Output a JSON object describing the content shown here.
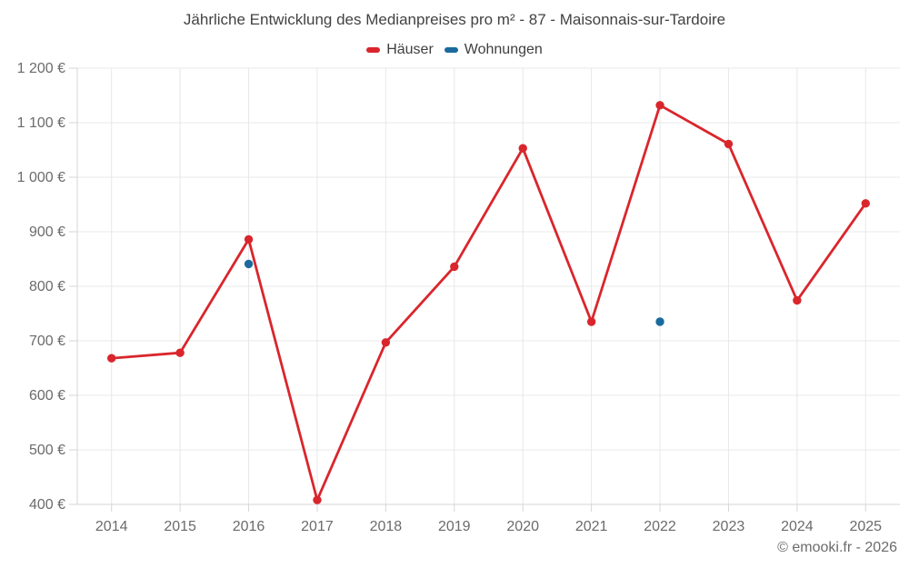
{
  "footer": "© emooki.fr - 2026",
  "colors": {
    "haeuser": "#d9262c",
    "wohnungen": "#1a6a9d",
    "grid": "#e8e8e8",
    "axis": "#d6d6d6",
    "tick_text": "#6b6b6b",
    "title_text": "#424242"
  },
  "chart_data": {
    "type": "line",
    "title": "Jährliche Entwicklung des Medianpreises pro m² - 87 - Maisonnais-sur-Tardoire",
    "categories": [
      "2014",
      "2015",
      "2016",
      "2017",
      "2018",
      "2019",
      "2020",
      "2021",
      "2022",
      "2023",
      "2024",
      "2025"
    ],
    "series": [
      {
        "name": "Häuser",
        "color": "#d9262c",
        "show_line": true,
        "values": [
          668,
          678,
          886,
          408,
          697,
          836,
          1053,
          735,
          1132,
          1061,
          774,
          952
        ]
      },
      {
        "name": "Wohnungen",
        "color": "#1a6a9d",
        "show_line": false,
        "values": [
          null,
          null,
          841,
          null,
          null,
          null,
          null,
          null,
          735,
          null,
          null,
          null
        ]
      }
    ],
    "xlabel": "",
    "ylabel": "",
    "ylim": [
      400,
      1200
    ],
    "y_ticks": [
      1200,
      1100,
      1000,
      900,
      800,
      700,
      600,
      500,
      400
    ],
    "y_tick_labels": [
      "1 200 €",
      "1 100 €",
      "1 000 €",
      "900 €",
      "800 €",
      "700 €",
      "600 €",
      "500 €",
      "400 €"
    ],
    "grid": true,
    "legend_position": "top",
    "line_width": 2.8,
    "point_radius": 4.7
  }
}
